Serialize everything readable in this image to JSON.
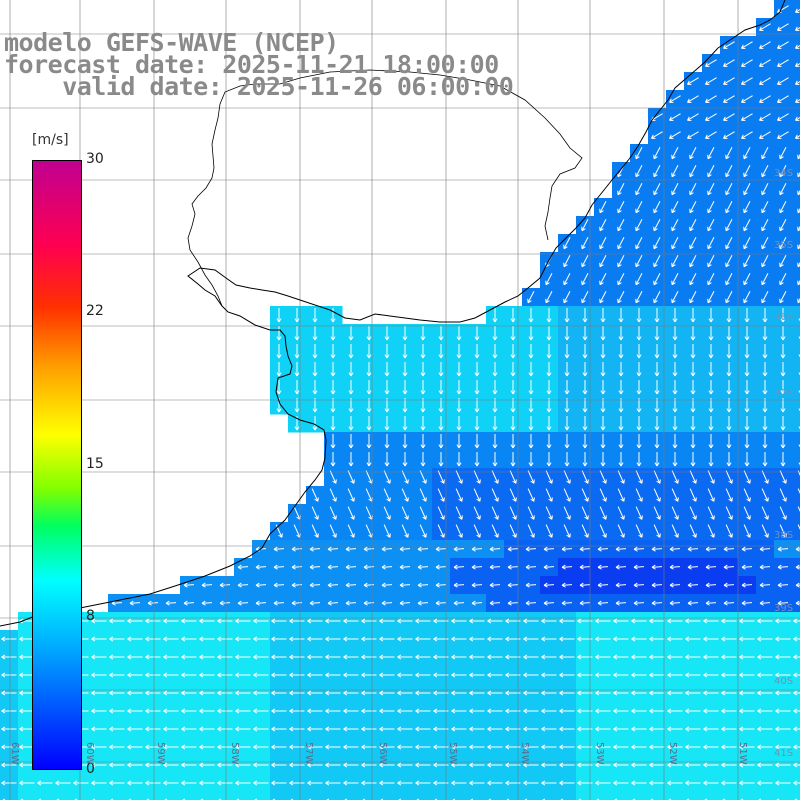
{
  "title": {
    "line1": "modelo GEFS-WAVE (NCEP)",
    "line2": "forecast date: 2025-11-21 18:00:00",
    "line3": "    valid date: 2025-11-26 06:00:00"
  },
  "colorbar": {
    "unit": "[m/s]",
    "ticks": [
      "30",
      "22",
      "15",
      "8",
      "0"
    ],
    "tick_values": [
      30,
      22,
      15,
      8,
      0
    ]
  },
  "latitude_labels": [
    "34S",
    "35S",
    "36S",
    "37S",
    "38S",
    "39S",
    "40S",
    "41S"
  ],
  "longitude_labels": [
    "61W",
    "60W",
    "59W",
    "58W",
    "57W",
    "56W",
    "55W",
    "54W",
    "53W",
    "52W",
    "51W"
  ],
  "colors": {
    "land": "#ffffff",
    "coastline": "#000000",
    "grid": "#7a7a7a",
    "arrows": "#ffffff",
    "title_text": "#8a8a8a"
  },
  "field": {
    "variable": "wind speed and direction",
    "range_m_s": [
      0,
      30
    ]
  }
}
